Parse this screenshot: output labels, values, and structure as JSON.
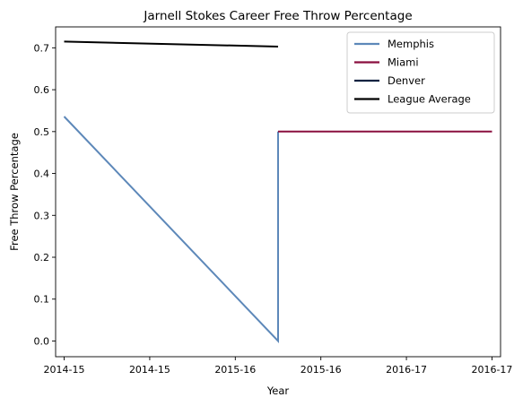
{
  "chart_data": {
    "type": "line",
    "title": "Jarnell Stokes Career Free Throw Percentage",
    "xlabel": "Year",
    "ylabel": "Free Throw Percentage",
    "x_tick_labels": [
      "2014-15",
      "2014-15",
      "2015-16",
      "2015-16",
      "2016-17",
      "2016-17"
    ],
    "x_range": [
      -0.1,
      5.1
    ],
    "ylim": [
      -0.0375,
      0.75
    ],
    "y_ticks": [
      0.0,
      0.1,
      0.2,
      0.3,
      0.4,
      0.5,
      0.6,
      0.7
    ],
    "grid": false,
    "legend_position": "top-right",
    "series": [
      {
        "name": "Memphis",
        "color": "#5d88b9",
        "x": [
          0,
          2.5,
          2.5
        ],
        "y": [
          0.536,
          0.0,
          0.5
        ]
      },
      {
        "name": "Miami",
        "color": "#8a0f3f",
        "x": [
          2.5,
          5
        ],
        "y": [
          0.5,
          0.5
        ]
      },
      {
        "name": "Denver",
        "color": "#0e2240",
        "x": [],
        "y": []
      },
      {
        "name": "League Average",
        "color": "#000000",
        "x": [
          0,
          2.5
        ],
        "y": [
          0.715,
          0.703
        ]
      }
    ]
  }
}
